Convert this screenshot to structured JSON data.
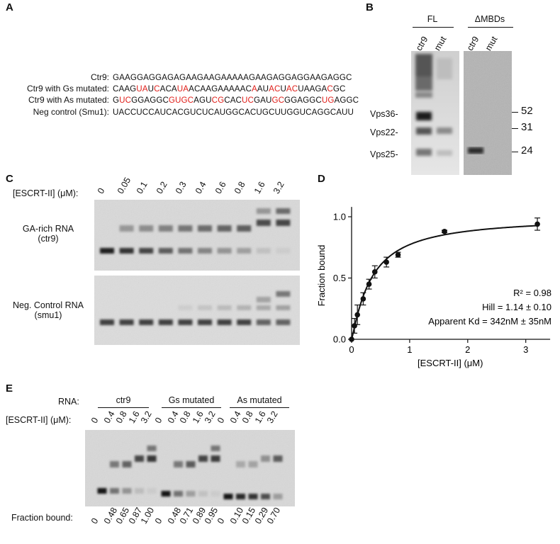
{
  "panels": {
    "a": "A",
    "b": "B",
    "c": "C",
    "d": "D",
    "e": "E"
  },
  "panel_a": {
    "rows": [
      {
        "label": "Ctr9:",
        "seq": "GAAGGAGGAGAGAAGAAGAAAAAGAAGAGGAGGAAGAGGC",
        "red": []
      },
      {
        "label": "Ctr9 with Gs mutated:",
        "seq": "CAAGUAUCACAUAACAAGAAAAACAAUACUACUAAGACGC",
        "red": [
          4,
          5,
          7,
          11,
          12,
          24,
          27,
          28,
          30,
          31,
          37
        ]
      },
      {
        "label": "Ctr9 with As mutated:",
        "seq": "GUCGGAGGCGUGCAGUCGCACUCGAUGCGGAGGCUGAGGC",
        "red": [
          1,
          2,
          9,
          10,
          11,
          12,
          16,
          17,
          21,
          22,
          26,
          27,
          34,
          35
        ]
      },
      {
        "label": "Neg control (Smu1):",
        "seq": "UACCUCCAUCACGUCUCAUGGCACUGCUUGGUCAGGCAUU",
        "red": []
      }
    ]
  },
  "panel_b": {
    "group_fl": "FL",
    "group_dmbd": "ΔMBDs",
    "lanes": [
      "ctr9",
      "mut",
      "ctr9",
      "mut"
    ],
    "band_labels": [
      "Vps36-",
      "Vps22-",
      "Vps25-"
    ],
    "markers": [
      "52",
      "31",
      "24"
    ]
  },
  "panel_c": {
    "conc_label": "[ESCRT-II] (μM):",
    "concs": [
      "0",
      "0.05",
      "0.1",
      "0.2",
      "0.3",
      "0.4",
      "0.6",
      "0.8",
      "1.6",
      "3.2"
    ],
    "gel1_label_1": "GA-rich RNA",
    "gel1_label_2": "(ctr9)",
    "gel2_label_1": "Neg. Control RNA",
    "gel2_label_2": "(smu1)"
  },
  "panel_d": {
    "ylabel": "Fraction bound",
    "xlabel": "[ESCRT-II] (μM)",
    "stat_r2": "R² = 0.98",
    "stat_hill": "Hill = 1.14 ± 0.10",
    "stat_kd": "Apparent Kd = 342nM ± 35nM"
  },
  "chart_data": {
    "type": "scatter",
    "title": "",
    "xlabel": "[ESCRT-II] (μM)",
    "ylabel": "Fraction bound",
    "xlim": [
      0,
      3.4
    ],
    "ylim": [
      0,
      1.05
    ],
    "xticks": [
      "0",
      "1",
      "2",
      "3"
    ],
    "yticks": [
      "0.0",
      "0.5",
      "1.0"
    ],
    "x": [
      0,
      0.05,
      0.1,
      0.2,
      0.3,
      0.4,
      0.6,
      0.8,
      1.6,
      3.2
    ],
    "y": [
      0.0,
      0.11,
      0.2,
      0.33,
      0.45,
      0.55,
      0.63,
      0.69,
      0.88,
      0.94
    ],
    "err": [
      0.0,
      0.06,
      0.08,
      0.05,
      0.04,
      0.05,
      0.04,
      0.02,
      0.01,
      0.05
    ],
    "fit": {
      "kd": 0.342,
      "hill": 1.14,
      "bmax": 1.0
    },
    "grid": false
  },
  "panel_e": {
    "rna_label": "RNA:",
    "conc_label": "[ESCRT-II] (μM):",
    "frac_label": "Fraction bound:",
    "groups": [
      "ctr9",
      "Gs mutated",
      "As mutated"
    ],
    "concs": [
      "0",
      "0.4",
      "0.8",
      "1.6",
      "3.2"
    ],
    "fractions": [
      [
        "0",
        "0.48",
        "0.65",
        "0.87",
        "1.00"
      ],
      [
        "0",
        "0.48",
        "0.71",
        "0.89",
        "0.95"
      ],
      [
        "0",
        "0.10",
        "0.15",
        "0.29",
        "0.70"
      ]
    ]
  }
}
